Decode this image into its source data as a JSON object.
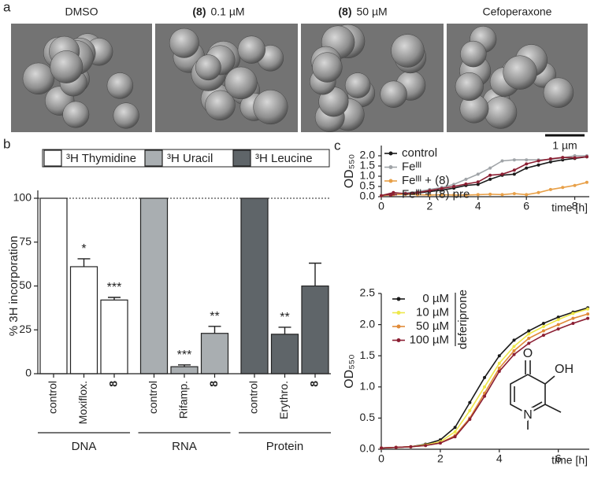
{
  "panel_labels": [
    "a",
    "b",
    "c"
  ],
  "images": [
    {
      "label": "DMSO"
    },
    {
      "compound": "(8)",
      "concentration": "0.1 µM"
    },
    {
      "compound": "(8)",
      "concentration": "50 µM"
    },
    {
      "label": "Cefoperaxone"
    }
  ],
  "scale_bar": "1 µm",
  "chart_data": [
    {
      "type": "bar",
      "y_label": "% 3H incorporation",
      "categories": [
        "control",
        "Moxiflox.",
        "8",
        "control",
        "Rifamp.",
        "8",
        "control",
        "Erythro.",
        "8"
      ],
      "groups": [
        "DNA",
        "RNA",
        "Protein"
      ],
      "series": [
        {
          "name": "³H Thymidine",
          "color": "#ffffff",
          "values": [
            100,
            61,
            42,
            null,
            null,
            null,
            null,
            null,
            null
          ],
          "errors": [
            null,
            4.5,
            1.5,
            null,
            null,
            null,
            null,
            null,
            null
          ],
          "significance": [
            null,
            "*",
            "***",
            null,
            null,
            null,
            null,
            null,
            null
          ]
        },
        {
          "name": "³H Uracil",
          "color": "#a9aeb1",
          "values": [
            null,
            null,
            null,
            100,
            4,
            23,
            null,
            null,
            null
          ],
          "errors": [
            null,
            null,
            null,
            null,
            1,
            4,
            null,
            null,
            null
          ],
          "significance": [
            null,
            null,
            null,
            null,
            "***",
            "**",
            null,
            null,
            null
          ]
        },
        {
          "name": "³H Leucine",
          "color": "#5f6569",
          "values": [
            null,
            null,
            null,
            null,
            null,
            null,
            100,
            22.5,
            50
          ],
          "errors": [
            null,
            null,
            null,
            null,
            null,
            null,
            null,
            4,
            13
          ],
          "significance": [
            null,
            null,
            null,
            null,
            null,
            null,
            null,
            "**",
            null
          ]
        }
      ],
      "reference_line": 100,
      "ylim": [
        0,
        100
      ],
      "yticks": [
        0,
        25,
        50,
        75,
        100
      ]
    },
    {
      "type": "line",
      "y_label": "OD₅₅₀",
      "x_label": "time [h]",
      "x": [
        0,
        0.5,
        1,
        1.5,
        2,
        2.5,
        3,
        3.5,
        4,
        4.5,
        5,
        5.5,
        6,
        6.5,
        7,
        7.5,
        8,
        8.5
      ],
      "series": [
        {
          "name": "control",
          "color": "#1a1a1a",
          "values": [
            0.05,
            0.18,
            0.12,
            0.18,
            0.25,
            0.32,
            0.42,
            0.55,
            0.6,
            0.85,
            1.05,
            1.1,
            1.4,
            1.55,
            1.7,
            1.8,
            1.87,
            1.95
          ]
        },
        {
          "name": "Feᴵᴵᴵ",
          "color": "#a0a4a8",
          "values": [
            0.05,
            0.12,
            0.18,
            0.25,
            0.35,
            0.45,
            0.6,
            0.85,
            1.1,
            1.4,
            1.75,
            1.8,
            1.8,
            1.8,
            1.82,
            1.9,
            2.0,
            2.0
          ]
        },
        {
          "name": "Feᴵᴵᴵ + (8)",
          "color": "#e8a048",
          "values": [
            0.05,
            0.1,
            0.12,
            0.1,
            0.08,
            0.1,
            0.08,
            0.08,
            0.1,
            0.12,
            0.1,
            0.15,
            0.1,
            0.2,
            0.35,
            0.45,
            0.55,
            0.7
          ]
        },
        {
          "name": "Feᴵᴵᴵ + (8) pre",
          "color": "#8b1e32",
          "values": [
            0.05,
            0.2,
            0.15,
            0.2,
            0.3,
            0.4,
            0.5,
            0.62,
            0.72,
            1.05,
            1.1,
            1.3,
            1.6,
            1.75,
            1.85,
            1.92,
            1.9,
            1.95
          ]
        }
      ],
      "xlim": [
        0,
        8.6
      ],
      "xticks": [
        0,
        2,
        4,
        6,
        8
      ],
      "ylim": [
        0,
        2.5
      ],
      "yticks": [
        {
          "value": 0,
          "label": "0.0"
        },
        0.5,
        {
          "value": 1,
          "label": "1.0"
        },
        1.5,
        {
          "value": 2,
          "label": "2.0"
        }
      ]
    },
    {
      "type": "line",
      "y_label": "OD₅₅₀",
      "x_label": "time [h]",
      "legend_title": "deferiprone",
      "x": [
        0,
        0.5,
        1,
        1.5,
        2,
        2.5,
        3,
        3.5,
        4,
        4.5,
        5,
        5.5,
        6,
        6.5,
        7
      ],
      "series": [
        {
          "name": "0 µM",
          "color": "#1a1a1a",
          "values": [
            0.02,
            0.03,
            0.04,
            0.08,
            0.15,
            0.35,
            0.75,
            1.15,
            1.5,
            1.75,
            1.9,
            2.02,
            2.12,
            2.2,
            2.27
          ]
        },
        {
          "name": "10 µM",
          "color": "#eee84a",
          "values": [
            0.02,
            0.03,
            0.04,
            0.07,
            0.12,
            0.28,
            0.62,
            1.0,
            1.38,
            1.65,
            1.85,
            1.97,
            2.08,
            2.18,
            2.25
          ]
        },
        {
          "name": "50 µM",
          "color": "#e08a38",
          "values": [
            0.02,
            0.03,
            0.04,
            0.06,
            0.1,
            0.22,
            0.5,
            0.9,
            1.3,
            1.58,
            1.78,
            1.9,
            2.0,
            2.1,
            2.17
          ]
        },
        {
          "name": "100 µM",
          "color": "#8b1e32",
          "values": [
            0.02,
            0.03,
            0.04,
            0.06,
            0.1,
            0.2,
            0.48,
            0.85,
            1.25,
            1.52,
            1.7,
            1.83,
            1.93,
            2.02,
            2.1
          ]
        }
      ],
      "xlim": [
        0,
        7.05
      ],
      "xticks": [
        0,
        2,
        4,
        6
      ],
      "ylim": [
        0,
        2.5
      ],
      "yticks": [
        {
          "value": 0,
          "label": "0.0"
        },
        0.5,
        {
          "value": 1,
          "label": "1.0"
        },
        1.5,
        {
          "value": 2,
          "label": "2.0"
        },
        2.5
      ],
      "structure_labels": [
        "O",
        "OH",
        "N"
      ]
    }
  ]
}
